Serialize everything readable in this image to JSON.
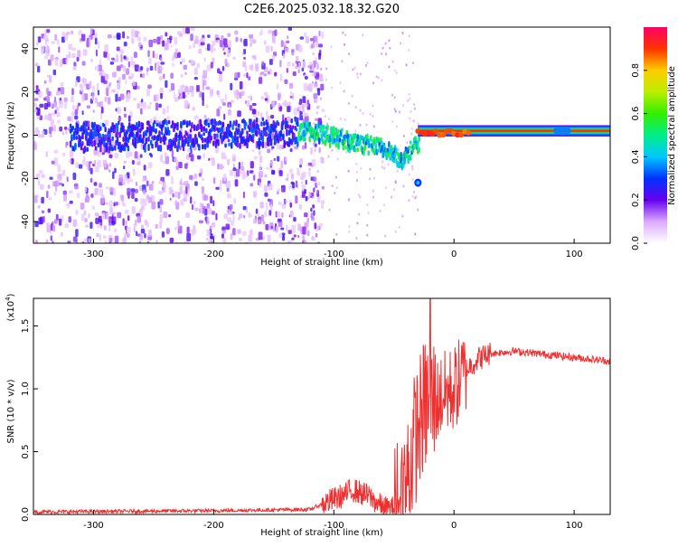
{
  "title": "C2E6.2025.032.18.32.G20",
  "chart_data": [
    {
      "type": "heatmap",
      "xlabel": "Height of straight line (km)",
      "ylabel": "Frequency (Hz)",
      "xlim": [
        -350,
        130
      ],
      "ylim": [
        -50,
        50
      ],
      "xticks": [
        -300,
        -200,
        -100,
        0,
        100
      ],
      "yticks": [
        -40,
        -20,
        0,
        20,
        40
      ],
      "xtick_labels": [
        "-300",
        "-200",
        "-100",
        "0",
        "100"
      ],
      "ytick_labels": [
        "-40",
        "-20",
        "0",
        "20",
        "40"
      ],
      "colorbar": {
        "label": "Normalized spectral amplitude",
        "range": [
          0,
          1
        ],
        "ticks": [
          0.0,
          0.2,
          0.4,
          0.6,
          0.8
        ],
        "tick_labels": [
          "0.0",
          "0.2",
          "0.4",
          "0.6",
          "0.8"
        ]
      },
      "noise_region": {
        "x_start": -350,
        "x_end": -120
      },
      "ridge": [
        {
          "x": -320,
          "freq": 0
        },
        {
          "x": -120,
          "freq": 3
        },
        {
          "x": -60,
          "freq": -5
        },
        {
          "x": -45,
          "freq": -10
        },
        {
          "x": -20,
          "freq": 2
        },
        {
          "x": 0,
          "freq": 1
        },
        {
          "x": 130,
          "freq": 2
        }
      ],
      "spot": {
        "x": -30,
        "freq": -22
      }
    },
    {
      "type": "line",
      "xlabel": "Height of straight line (km)",
      "ylabel": "SNR (10 * v/v)",
      "scale_label": "(x10",
      "scale_exponent": "4",
      "scale_close": ")",
      "xlim": [
        -350,
        130
      ],
      "ylim": [
        0,
        1.72
      ],
      "xticks": [
        -300,
        -200,
        -100,
        0,
        100
      ],
      "yticks": [
        0.0,
        0.5,
        1.0,
        1.5
      ],
      "xtick_labels": [
        "-300",
        "-200",
        "-100",
        "0",
        "100"
      ],
      "ytick_labels": [
        "0.0",
        "0.5",
        "1.0",
        "1.5"
      ],
      "line_color": "#ee3030",
      "profile": [
        [
          -350,
          0.02
        ],
        [
          -200,
          0.03
        ],
        [
          -120,
          0.04
        ],
        [
          -110,
          0.08
        ],
        [
          -100,
          0.12
        ],
        [
          -95,
          0.14
        ],
        [
          -90,
          0.16
        ],
        [
          -85,
          0.2
        ],
        [
          -80,
          0.18
        ],
        [
          -75,
          0.16
        ],
        [
          -70,
          0.14
        ],
        [
          -65,
          0.1
        ],
        [
          -60,
          0.06
        ],
        [
          -55,
          0.04
        ],
        [
          -50,
          0.05
        ],
        [
          -45,
          0.1
        ],
        [
          -40,
          0.25
        ],
        [
          -35,
          0.5
        ],
        [
          -30,
          0.7
        ],
        [
          -25,
          0.85
        ],
        [
          -20,
          0.9
        ],
        [
          -15,
          0.9
        ],
        [
          -10,
          0.95
        ],
        [
          0,
          1.0
        ],
        [
          10,
          1.15
        ],
        [
          20,
          1.24
        ],
        [
          30,
          1.28
        ],
        [
          50,
          1.3
        ],
        [
          80,
          1.27
        ],
        [
          100,
          1.25
        ],
        [
          130,
          1.22
        ]
      ],
      "peak": {
        "x": -20,
        "y": 1.72
      }
    }
  ]
}
